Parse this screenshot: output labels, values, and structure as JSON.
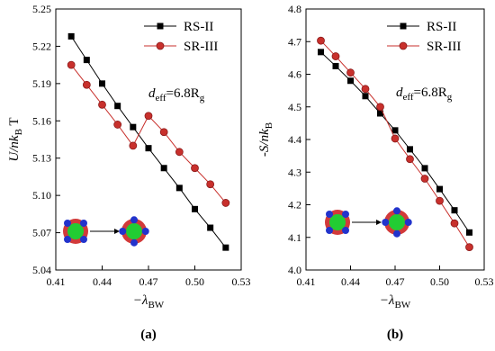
{
  "chart_data": [
    {
      "type": "line",
      "panel_label": "(a)",
      "x_label": [
        "−λ",
        "BW"
      ],
      "y_label": [
        "U/nk",
        "B",
        " T"
      ],
      "annotation": [
        "d",
        "eff",
        "=6.8",
        "R",
        "g"
      ],
      "x": [
        0.42,
        0.43,
        0.44,
        0.45,
        0.46,
        0.47,
        0.48,
        0.49,
        0.5,
        0.51,
        0.52
      ],
      "series": [
        {
          "name": "RS-II",
          "color": "#000000",
          "marker": "square",
          "values": [
            5.228,
            5.209,
            5.19,
            5.172,
            5.155,
            5.138,
            5.122,
            5.106,
            5.089,
            5.074,
            5.058
          ]
        },
        {
          "name": "SR-III",
          "color": "#c8302c",
          "marker": "circle",
          "values": [
            5.205,
            5.189,
            5.173,
            5.157,
            5.14,
            5.164,
            5.151,
            5.135,
            5.122,
            5.109,
            5.094
          ]
        }
      ],
      "xlim": [
        0.41,
        0.53
      ],
      "xticks": [
        0.41,
        0.44,
        0.47,
        {
          "value": 0.5,
          "label": "0.50"
        },
        0.53
      ],
      "ylim": [
        5.04,
        5.25
      ],
      "yticks": [
        5.04,
        5.07,
        {
          "value": 5.1,
          "label": "5.10"
        },
        5.13,
        5.16,
        5.19,
        5.22,
        5.25
      ],
      "legend": "upper right"
    },
    {
      "type": "line",
      "panel_label": "(b)",
      "x_label": [
        "−λ",
        "BW"
      ],
      "y_label": [
        "-S/nk",
        "B"
      ],
      "annotation": [
        "d",
        "eff",
        "=6.8",
        "R",
        "g"
      ],
      "x": [
        0.42,
        0.43,
        0.44,
        0.45,
        0.46,
        0.47,
        0.48,
        0.49,
        0.5,
        0.51,
        0.52
      ],
      "series": [
        {
          "name": "RS-II",
          "color": "#000000",
          "marker": "square",
          "values": [
            4.668,
            4.625,
            4.58,
            4.533,
            4.48,
            4.428,
            4.37,
            4.312,
            4.248,
            4.183,
            4.115
          ]
        },
        {
          "name": "SR-III",
          "color": "#c8302c",
          "marker": "circle",
          "values": [
            4.703,
            4.655,
            4.605,
            4.555,
            4.5,
            4.403,
            4.34,
            4.28,
            4.212,
            4.143,
            4.07
          ]
        }
      ],
      "xlim": [
        0.41,
        0.53
      ],
      "xticks": [
        0.41,
        0.44,
        0.47,
        {
          "value": 0.5,
          "label": "0.50"
        },
        0.53
      ],
      "ylim": [
        4.0,
        4.8
      ],
      "yticks": [
        {
          "value": 4.0,
          "label": "4.0"
        },
        4.1,
        4.2,
        4.3,
        4.4,
        4.5,
        4.6,
        4.7,
        4.8
      ],
      "legend": "upper right"
    }
  ]
}
